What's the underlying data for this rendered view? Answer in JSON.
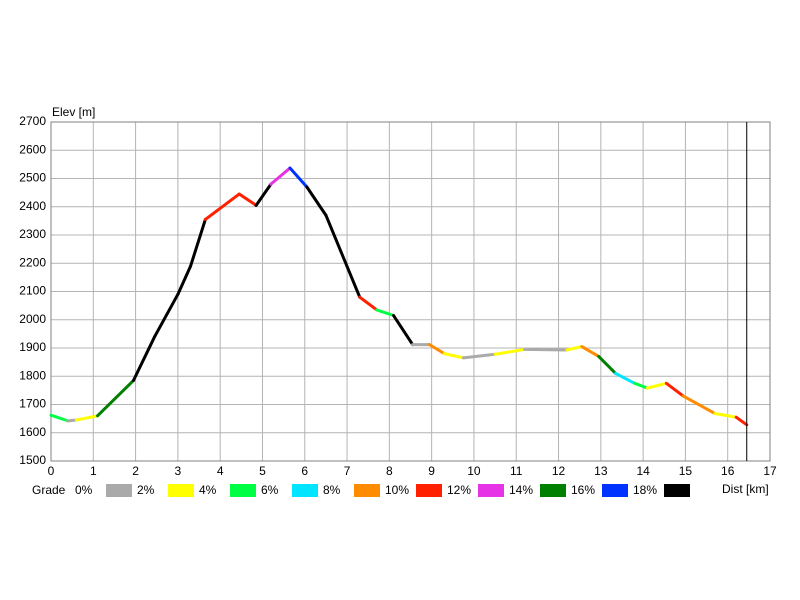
{
  "chart_data": {
    "type": "grade_profile",
    "y_label": "Elev [m]",
    "x_label": "Dist [km]",
    "x": [
      0,
      0.4,
      0.6,
      1.1,
      1.95,
      2.45,
      3.0,
      3.3,
      3.65,
      4.45,
      4.85,
      5.2,
      5.65,
      6.05,
      6.5,
      7.3,
      7.7,
      8.1,
      8.55,
      8.95,
      9.3,
      9.75,
      10.5,
      11.2,
      12.2,
      12.55,
      12.95,
      13.35,
      13.8,
      14.1,
      14.55,
      14.95,
      15.7,
      16.2,
      16.45
    ],
    "values": [
      1662,
      1642,
      1645,
      1660,
      1785,
      1940,
      2090,
      2190,
      2355,
      2445,
      2405,
      2480,
      2537,
      2470,
      2370,
      2080,
      2035,
      2015,
      1912,
      1912,
      1880,
      1865,
      1878,
      1895,
      1893,
      1905,
      1870,
      1810,
      1775,
      1758,
      1775,
      1730,
      1668,
      1655,
      1628
    ],
    "xlim": [
      0,
      17
    ],
    "xticks": [
      0,
      1,
      2,
      3,
      4,
      5,
      6,
      7,
      8,
      9,
      10,
      11,
      12,
      13,
      14,
      15,
      16,
      17
    ],
    "ylim": [
      1500,
      2700
    ],
    "yticks": [
      1500,
      1600,
      1700,
      1800,
      1900,
      2000,
      2100,
      2200,
      2300,
      2400,
      2500,
      2600,
      2700
    ],
    "grid": true,
    "legend": {
      "title": "Grade",
      "items": [
        {
          "value": 0,
          "label": "0%",
          "color": "#aaaaaa"
        },
        {
          "value": 2,
          "label": "2%",
          "color": "#ffff00"
        },
        {
          "value": 4,
          "label": "4%",
          "color": "#00ff44"
        },
        {
          "value": 6,
          "label": "6%",
          "color": "#00e5ff"
        },
        {
          "value": 8,
          "label": "8%",
          "color": "#ff8c00"
        },
        {
          "value": 10,
          "label": "10%",
          "color": "#ff2000"
        },
        {
          "value": 12,
          "label": "12%",
          "color": "#e633e6"
        },
        {
          "value": 14,
          "label": "14%",
          "color": "#008000"
        },
        {
          "value": 16,
          "label": "16%",
          "color": "#0033ff"
        },
        {
          "value": 18,
          "label": "18%",
          "color": "#000000"
        }
      ]
    }
  }
}
